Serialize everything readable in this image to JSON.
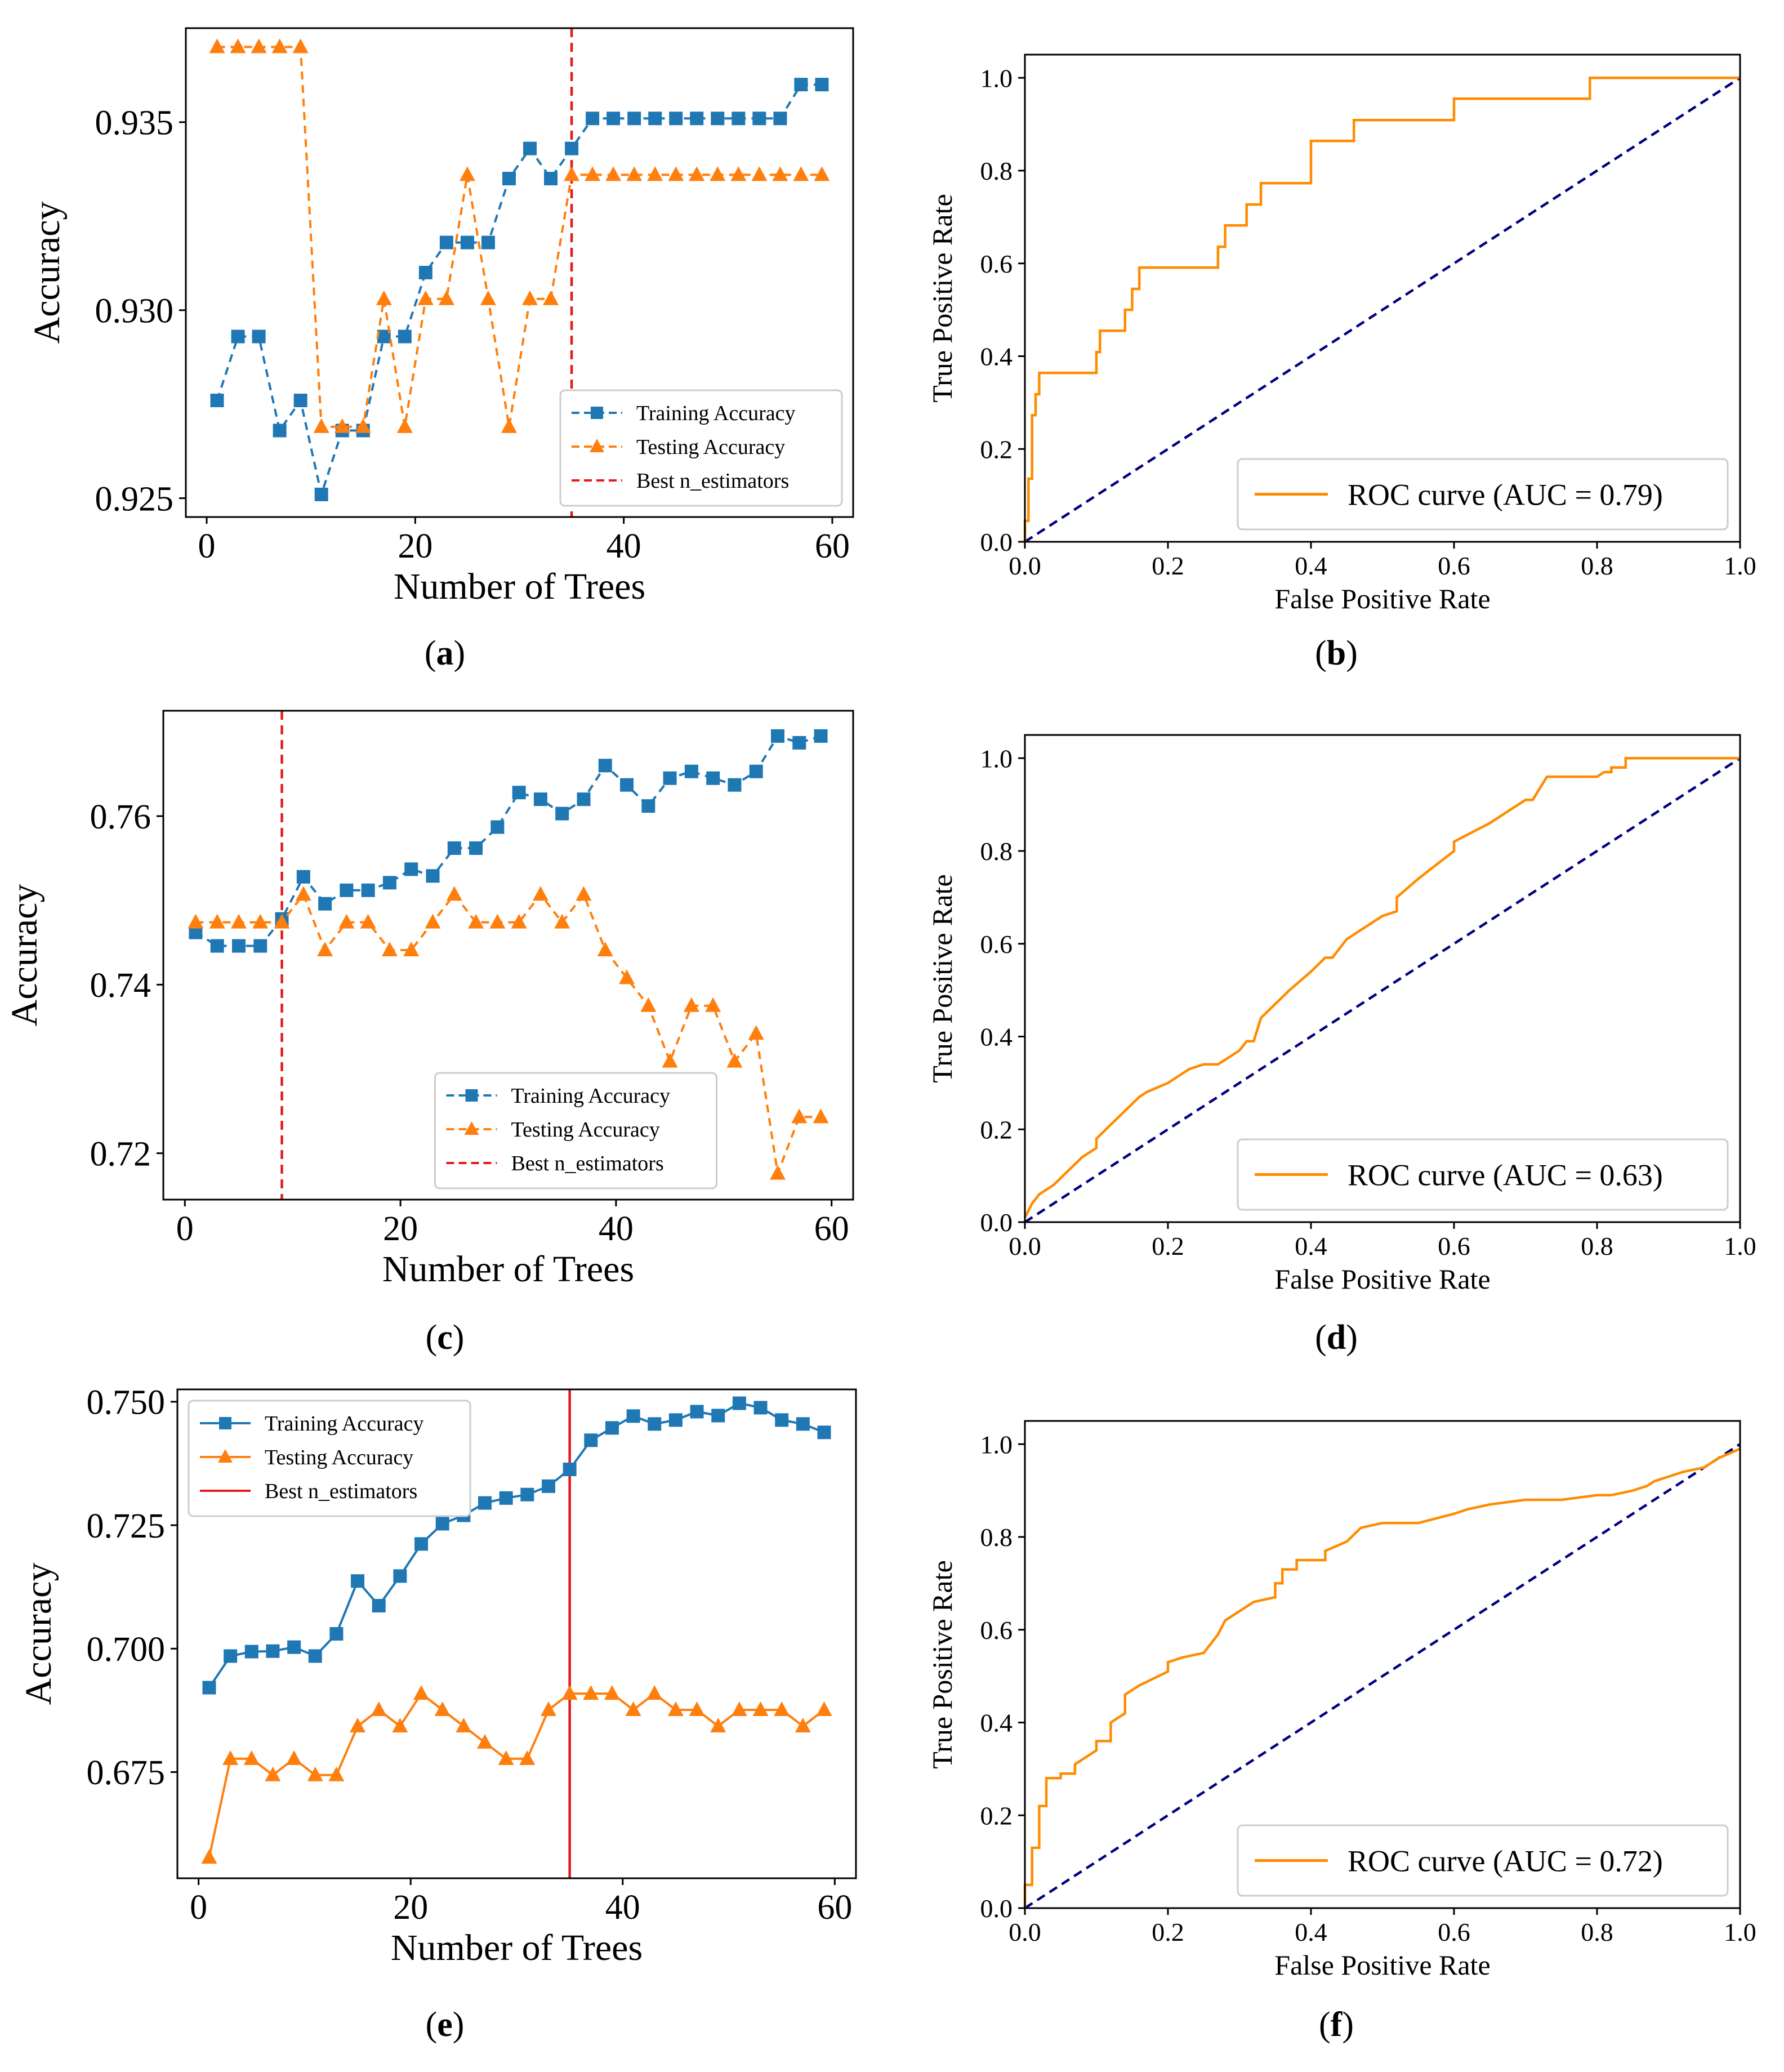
{
  "figure": {
    "background": "#ffffff"
  },
  "chart_data": [
    {
      "id": "a",
      "type": "line",
      "caption": "a",
      "xlabel": "Number of Trees",
      "ylabel": "Accuracy",
      "xlim": [
        -2,
        62
      ],
      "ylim": [
        0.9245,
        0.9375
      ],
      "xticks": [
        0,
        20,
        40,
        60
      ],
      "yticks": [
        0.925,
        0.93,
        0.935
      ],
      "ytick_labels": [
        "0.925",
        "0.930",
        "0.935"
      ],
      "legend": {
        "position": "bottom-right",
        "entries": [
          "Training Accuracy",
          "Testing Accuracy",
          "Best n_estimators"
        ]
      },
      "vline": {
        "x": 35,
        "label": "Best n_estimators",
        "color": "#e41a1c",
        "style": "dashed"
      },
      "x": [
        1,
        3,
        5,
        7,
        9,
        11,
        13,
        15,
        17,
        19,
        21,
        23,
        25,
        27,
        29,
        31,
        33,
        35,
        37,
        39,
        41,
        43,
        45,
        47,
        49,
        51,
        53,
        55,
        57,
        59
      ],
      "series": [
        {
          "name": "Training Accuracy",
          "color": "#1f77b4",
          "marker": "square",
          "style": "dashed",
          "values": [
            0.9276,
            0.9293,
            0.9293,
            0.9268,
            0.9276,
            0.9251,
            0.9268,
            0.9268,
            0.9293,
            0.9293,
            0.931,
            0.9318,
            0.9318,
            0.9318,
            0.9335,
            0.9343,
            0.9335,
            0.9343,
            0.9351,
            0.9351,
            0.9351,
            0.9351,
            0.9351,
            0.9351,
            0.9351,
            0.9351,
            0.9351,
            0.9351,
            0.936,
            0.936
          ]
        },
        {
          "name": "Testing Accuracy",
          "color": "#ff7f0e",
          "marker": "triangle",
          "style": "dashed",
          "values": [
            0.937,
            0.937,
            0.937,
            0.937,
            0.937,
            0.9269,
            0.9269,
            0.9269,
            0.9303,
            0.9269,
            0.9303,
            0.9303,
            0.9336,
            0.9303,
            0.9269,
            0.9303,
            0.9303,
            0.9336,
            0.9336,
            0.9336,
            0.9336,
            0.9336,
            0.9336,
            0.9336,
            0.9336,
            0.9336,
            0.9336,
            0.9336,
            0.9336,
            0.9336
          ]
        }
      ]
    },
    {
      "id": "b",
      "type": "line",
      "caption": "b",
      "xlabel": "False Positive Rate",
      "ylabel": "True Positive Rate",
      "xlim": [
        0,
        1
      ],
      "ylim": [
        0,
        1.05
      ],
      "xticks": [
        0.0,
        0.2,
        0.4,
        0.6,
        0.8,
        1.0
      ],
      "yticks": [
        0.0,
        0.2,
        0.4,
        0.6,
        0.8,
        1.0
      ],
      "legend": {
        "position": "bottom-right",
        "entries": [
          "ROC curve (AUC = 0.79)"
        ]
      },
      "chance_line": {
        "color": "#000080",
        "style": "dashed"
      },
      "series": [
        {
          "name": "ROC curve (AUC = 0.79)",
          "color": "#ff8c00",
          "style": "solid",
          "x": [
            0,
            0,
            0.005,
            0.005,
            0.01,
            0.01,
            0.015,
            0.015,
            0.02,
            0.02,
            0.025,
            0.025,
            0.1,
            0.1,
            0.105,
            0.105,
            0.14,
            0.14,
            0.15,
            0.15,
            0.16,
            0.16,
            0.27,
            0.27,
            0.28,
            0.28,
            0.31,
            0.31,
            0.33,
            0.33,
            0.35,
            0.35,
            0.4,
            0.4,
            0.42,
            0.42,
            0.46,
            0.46,
            0.6,
            0.6,
            0.79,
            0.79,
            1.0
          ],
          "y": [
            0,
            0.045,
            0.045,
            0.136,
            0.136,
            0.273,
            0.273,
            0.318,
            0.318,
            0.364,
            0.364,
            0.364,
            0.364,
            0.409,
            0.409,
            0.455,
            0.455,
            0.5,
            0.5,
            0.545,
            0.545,
            0.591,
            0.591,
            0.636,
            0.636,
            0.682,
            0.682,
            0.727,
            0.727,
            0.773,
            0.773,
            0.773,
            0.773,
            0.864,
            0.864,
            0.864,
            0.864,
            0.909,
            0.909,
            0.955,
            0.955,
            1.0,
            1.0
          ]
        }
      ]
    },
    {
      "id": "c",
      "type": "line",
      "caption": "c",
      "xlabel": "Number of Trees",
      "ylabel": "Accuracy",
      "xlim": [
        -2,
        62
      ],
      "ylim": [
        0.7145,
        0.7725
      ],
      "xticks": [
        0,
        20,
        40,
        60
      ],
      "yticks": [
        0.72,
        0.74,
        0.76
      ],
      "ytick_labels": [
        "0.72",
        "0.74",
        "0.76"
      ],
      "legend": {
        "position": "bottom-center",
        "entries": [
          "Training Accuracy",
          "Testing Accuracy",
          "Best n_estimators"
        ]
      },
      "vline": {
        "x": 9,
        "label": "Best n_estimators",
        "color": "#e41a1c",
        "style": "dashed"
      },
      "x": [
        1,
        3,
        5,
        7,
        9,
        11,
        13,
        15,
        17,
        19,
        21,
        23,
        25,
        27,
        29,
        31,
        33,
        35,
        37,
        39,
        41,
        43,
        45,
        47,
        49,
        51,
        53,
        55,
        57,
        59
      ],
      "series": [
        {
          "name": "Training Accuracy",
          "color": "#1f77b4",
          "marker": "square",
          "style": "dashed",
          "values": [
            0.7462,
            0.7446,
            0.7446,
            0.7446,
            0.7478,
            0.7528,
            0.7496,
            0.7512,
            0.7512,
            0.7521,
            0.7537,
            0.7529,
            0.7562,
            0.7562,
            0.7587,
            0.7628,
            0.762,
            0.7603,
            0.762,
            0.766,
            0.7637,
            0.7612,
            0.7645,
            0.7653,
            0.7645,
            0.7637,
            0.7653,
            0.7695,
            0.7687,
            0.7695
          ]
        },
        {
          "name": "Testing Accuracy",
          "color": "#ff7f0e",
          "marker": "triangle",
          "style": "dashed",
          "values": [
            0.7474,
            0.7474,
            0.7474,
            0.7474,
            0.7474,
            0.7507,
            0.7441,
            0.7474,
            0.7474,
            0.7441,
            0.7441,
            0.7474,
            0.7507,
            0.7474,
            0.7474,
            0.7474,
            0.7507,
            0.7474,
            0.7507,
            0.7441,
            0.7408,
            0.7375,
            0.7309,
            0.7375,
            0.7375,
            0.7309,
            0.7342,
            0.7176,
            0.7243,
            0.7243
          ]
        }
      ]
    },
    {
      "id": "d",
      "type": "line",
      "caption": "d",
      "xlabel": "False Positive Rate",
      "ylabel": "True Positive Rate",
      "xlim": [
        0,
        1
      ],
      "ylim": [
        0,
        1.05
      ],
      "xticks": [
        0.0,
        0.2,
        0.4,
        0.6,
        0.8,
        1.0
      ],
      "yticks": [
        0.0,
        0.2,
        0.4,
        0.6,
        0.8,
        1.0
      ],
      "legend": {
        "position": "bottom-right",
        "entries": [
          "ROC curve (AUC = 0.63)"
        ]
      },
      "chance_line": {
        "color": "#000080",
        "style": "dashed"
      },
      "series": [
        {
          "name": "ROC curve (AUC = 0.63)",
          "color": "#ff8c00",
          "style": "solid",
          "x": [
            0,
            0.01,
            0.02,
            0.04,
            0.06,
            0.08,
            0.1,
            0.1,
            0.12,
            0.14,
            0.16,
            0.17,
            0.2,
            0.22,
            0.23,
            0.25,
            0.27,
            0.28,
            0.3,
            0.31,
            0.32,
            0.33,
            0.35,
            0.37,
            0.4,
            0.42,
            0.43,
            0.45,
            0.47,
            0.5,
            0.52,
            0.52,
            0.55,
            0.6,
            0.6,
            0.65,
            0.67,
            0.7,
            0.71,
            0.73,
            0.8,
            0.81,
            0.82,
            0.82,
            0.84,
            0.84,
            1.0
          ],
          "y": [
            0.01,
            0.04,
            0.06,
            0.08,
            0.11,
            0.14,
            0.16,
            0.18,
            0.21,
            0.24,
            0.27,
            0.28,
            0.3,
            0.32,
            0.33,
            0.34,
            0.34,
            0.35,
            0.37,
            0.39,
            0.39,
            0.44,
            0.47,
            0.5,
            0.54,
            0.57,
            0.57,
            0.61,
            0.63,
            0.66,
            0.67,
            0.7,
            0.74,
            0.8,
            0.82,
            0.86,
            0.88,
            0.91,
            0.91,
            0.96,
            0.96,
            0.97,
            0.97,
            0.98,
            0.98,
            1.0,
            1.0
          ]
        }
      ]
    },
    {
      "id": "e",
      "type": "line",
      "caption": "e",
      "xlabel": "Number of Trees",
      "ylabel": "Accuracy",
      "xlim": [
        -2,
        62
      ],
      "ylim": [
        0.6535,
        0.7525
      ],
      "xticks": [
        0,
        20,
        40,
        60
      ],
      "yticks": [
        0.675,
        0.7,
        0.725,
        0.75
      ],
      "ytick_labels": [
        "0.675",
        "0.700",
        "0.725",
        "0.750"
      ],
      "legend": {
        "position": "top-left",
        "entries": [
          "Training Accuracy",
          "Testing Accuracy",
          "Best n_estimators"
        ]
      },
      "vline": {
        "x": 35,
        "label": "Best n_estimators",
        "color": "#e41a1c",
        "style": "solid"
      },
      "x": [
        1,
        3,
        5,
        7,
        9,
        11,
        13,
        15,
        17,
        19,
        21,
        23,
        25,
        27,
        29,
        31,
        33,
        35,
        37,
        39,
        41,
        43,
        45,
        47,
        49,
        51,
        53,
        55,
        57,
        59
      ],
      "series": [
        {
          "name": "Training Accuracy",
          "color": "#1f77b4",
          "marker": "square",
          "style": "solid",
          "values": [
            0.6921,
            0.6985,
            0.6994,
            0.6995,
            0.7003,
            0.6985,
            0.703,
            0.7137,
            0.7087,
            0.7147,
            0.7212,
            0.7253,
            0.727,
            0.7295,
            0.7305,
            0.7312,
            0.7329,
            0.7363,
            0.7422,
            0.7447,
            0.7471,
            0.7455,
            0.7463,
            0.748,
            0.7472,
            0.7497,
            0.7488,
            0.7463,
            0.7455,
            0.7438
          ]
        },
        {
          "name": "Testing Accuracy",
          "color": "#ff7f0e",
          "marker": "triangle",
          "style": "solid",
          "values": [
            0.6577,
            0.6777,
            0.6777,
            0.6744,
            0.6777,
            0.6744,
            0.6744,
            0.6843,
            0.6876,
            0.6843,
            0.6909,
            0.6876,
            0.6843,
            0.681,
            0.6777,
            0.6777,
            0.6876,
            0.6909,
            0.6909,
            0.6909,
            0.6876,
            0.6909,
            0.6876,
            0.6876,
            0.6843,
            0.6876,
            0.6876,
            0.6876,
            0.6843,
            0.6876
          ]
        }
      ]
    },
    {
      "id": "f",
      "type": "line",
      "caption": "f",
      "xlabel": "False Positive Rate",
      "ylabel": "True Positive Rate",
      "xlim": [
        0,
        1
      ],
      "ylim": [
        0,
        1.05
      ],
      "xticks": [
        0.0,
        0.2,
        0.4,
        0.6,
        0.8,
        1.0
      ],
      "yticks": [
        0.0,
        0.2,
        0.4,
        0.6,
        0.8,
        1.0
      ],
      "legend": {
        "position": "bottom-right",
        "entries": [
          "ROC curve (AUC = 0.72)"
        ]
      },
      "chance_line": {
        "color": "#000080",
        "style": "dashed"
      },
      "series": [
        {
          "name": "ROC curve (AUC = 0.72)",
          "color": "#ff8c00",
          "style": "solid",
          "x": [
            0,
            0,
            0.01,
            0.01,
            0.02,
            0.02,
            0.03,
            0.03,
            0.05,
            0.05,
            0.07,
            0.07,
            0.08,
            0.1,
            0.1,
            0.12,
            0.12,
            0.14,
            0.14,
            0.16,
            0.2,
            0.2,
            0.22,
            0.25,
            0.27,
            0.28,
            0.3,
            0.32,
            0.35,
            0.35,
            0.36,
            0.36,
            0.38,
            0.38,
            0.42,
            0.42,
            0.45,
            0.47,
            0.5,
            0.55,
            0.6,
            0.62,
            0.65,
            0.7,
            0.75,
            0.8,
            0.82,
            0.85,
            0.87,
            0.88,
            0.9,
            0.92,
            0.95,
            0.97,
            1.0
          ],
          "y": [
            0,
            0.05,
            0.05,
            0.13,
            0.13,
            0.22,
            0.22,
            0.28,
            0.28,
            0.29,
            0.29,
            0.31,
            0.32,
            0.34,
            0.36,
            0.36,
            0.4,
            0.42,
            0.46,
            0.48,
            0.51,
            0.53,
            0.54,
            0.55,
            0.59,
            0.62,
            0.64,
            0.66,
            0.67,
            0.7,
            0.7,
            0.73,
            0.73,
            0.75,
            0.75,
            0.77,
            0.79,
            0.82,
            0.83,
            0.83,
            0.85,
            0.86,
            0.87,
            0.88,
            0.88,
            0.89,
            0.89,
            0.9,
            0.91,
            0.92,
            0.93,
            0.94,
            0.95,
            0.97,
            0.99
          ]
        }
      ]
    }
  ]
}
